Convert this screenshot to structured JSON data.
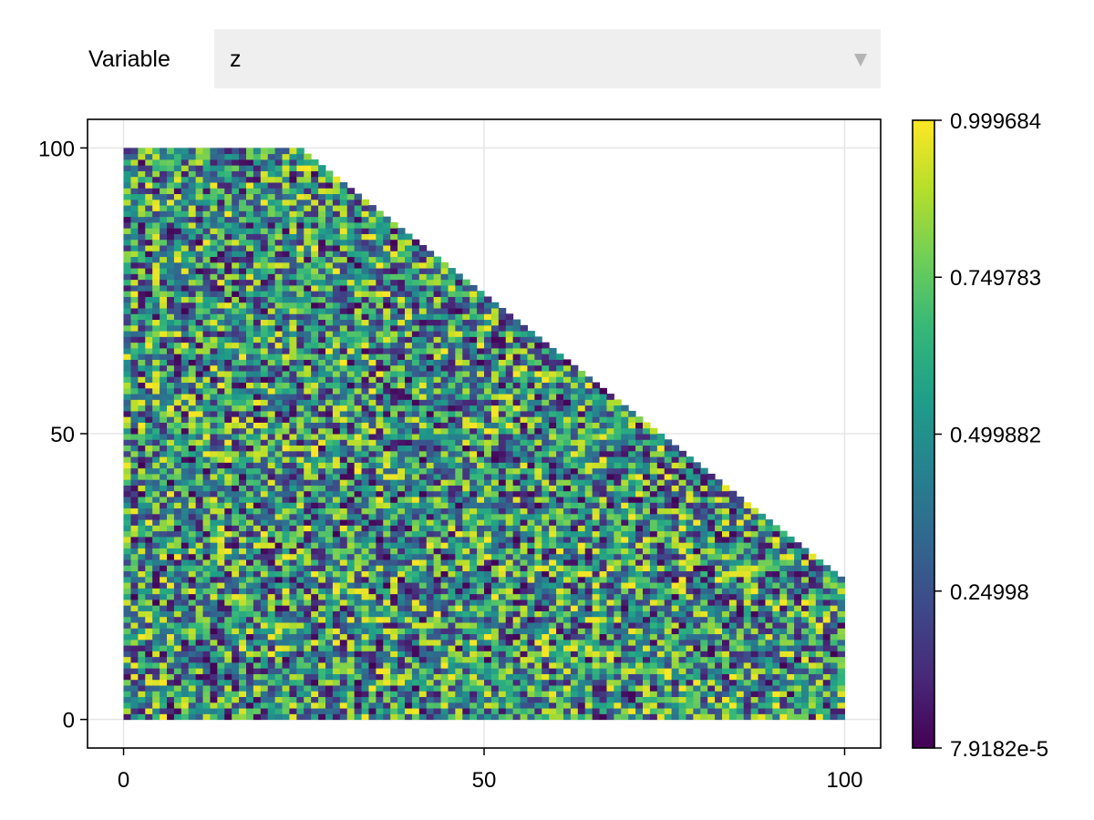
{
  "menu": {
    "label": "Variable",
    "selected": "z",
    "arrow_icon": "triangle-down-icon"
  },
  "chart_data": {
    "type": "heatmap",
    "title": "",
    "xlabel": "",
    "ylabel": "",
    "xlim": [
      -5,
      105
    ],
    "ylim": [
      -5,
      105
    ],
    "x_ticks": [
      "0",
      "50",
      "100"
    ],
    "y_ticks": [
      "0",
      "50",
      "100"
    ],
    "x_tick_values": [
      0,
      50,
      100
    ],
    "y_tick_values": [
      0,
      50,
      100
    ],
    "grid": true,
    "grid_x_range": [
      0,
      100
    ],
    "grid_y_range": [
      0,
      100
    ],
    "cell_count": 100,
    "mask": "cells with y > 124 - x are empty (NaN), giving the diagonal cutoff from (24,100) to (100,24)",
    "colormap": "viridis",
    "colorbar": {
      "ticks": [
        "7.9182e-5",
        "0.24998",
        "0.499882",
        "0.749783",
        "0.999684"
      ],
      "tick_values": [
        7.9182e-05,
        0.24998,
        0.499882,
        0.749783,
        0.999684
      ],
      "range": [
        7.9182e-05,
        0.999684
      ]
    },
    "values": "uniform random in [0, 1] per cell"
  }
}
